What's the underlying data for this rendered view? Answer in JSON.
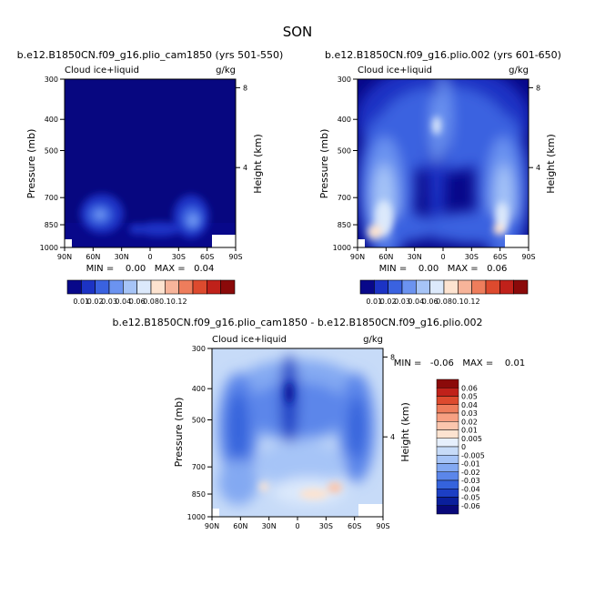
{
  "page_title": "SON",
  "panels": [
    {
      "title": "b.e12.B1850CN.f09_g16.plio_cam1850 (yrs 501-550)",
      "left_label": "Cloud ice+liquid",
      "right_label": "g/kg",
      "ylabel": "Pressure (mb)",
      "y2label": "Height (km)",
      "stats": "MIN =    0.00   MAX =   0.04"
    },
    {
      "title": "b.e12.B1850CN.f09_g16.plio.002 (yrs 601-650)",
      "left_label": "Cloud ice+liquid",
      "right_label": "g/kg",
      "ylabel": "Pressure (mb)",
      "y2label": "Height (km)",
      "stats": "MIN =    0.00   MAX =   0.06"
    },
    {
      "title": "b.e12.B1850CN.f09_g16.plio_cam1850 - b.e12.B1850CN.f09_g16.plio.002",
      "left_label": "Cloud ice+liquid",
      "right_label": "g/kg",
      "ylabel": "Pressure (mb)",
      "y2label": "Height (km)",
      "stats": "MIN =   -0.06   MAX =    0.01"
    }
  ],
  "colorbar_abs": {
    "labels": [
      "0.01",
      "0.02",
      "0.03",
      "0.04",
      "0.06",
      "0.08",
      "0.1",
      "0.12"
    ],
    "colors": [
      "#08088a",
      "#1c33c4",
      "#3a62e0",
      "#6b93f0",
      "#a6c4f7",
      "#dce9fb",
      "#fde3d0",
      "#f7b49a",
      "#ee7d5c",
      "#dd4a2e",
      "#c0211a",
      "#8b0a0a"
    ]
  },
  "colorbar_diff": {
    "labels": [
      "0.06",
      "0.05",
      "0.04",
      "0.03",
      "0.02",
      "0.01",
      "0.005",
      "0",
      "-0.005",
      "-0.01",
      "-0.02",
      "-0.03",
      "-0.04",
      "-0.05",
      "-0.06"
    ],
    "colors": [
      "#8b0a0a",
      "#c0211a",
      "#dd4a2e",
      "#ee7d5c",
      "#f7a082",
      "#fbc6ad",
      "#fde3d0",
      "#e6effc",
      "#c7dbf8",
      "#a6c4f7",
      "#83a9f2",
      "#5b86ea",
      "#3563dc",
      "#1c3fc4",
      "#0a1f9c",
      "#08087a"
    ]
  },
  "chart_data": [
    {
      "type": "heatmap",
      "title": "b.e12.B1850CN.f09_g16.plio_cam1850 (yrs 501-550)",
      "variable": "Cloud ice+liquid",
      "units": "g/kg",
      "xlabel": "",
      "ylabel": "Pressure (mb)",
      "y2label": "Height (km)",
      "x_ticks": [
        "90N",
        "60N",
        "30N",
        "0",
        "30S",
        "60S",
        "90S"
      ],
      "y_ticks": [
        300,
        400,
        500,
        700,
        850,
        1000
      ],
      "y2_ticks": [
        8,
        4
      ],
      "min": 0.0,
      "max": 0.04
    },
    {
      "type": "heatmap",
      "title": "b.e12.B1850CN.f09_g16.plio.002 (yrs 601-650)",
      "variable": "Cloud ice+liquid",
      "units": "g/kg",
      "xlabel": "",
      "ylabel": "Pressure (mb)",
      "y2label": "Height (km)",
      "x_ticks": [
        "90N",
        "60N",
        "30N",
        "0",
        "30S",
        "60S",
        "90S"
      ],
      "y_ticks": [
        300,
        400,
        500,
        700,
        850,
        1000
      ],
      "y2_ticks": [
        8,
        4
      ],
      "min": 0.0,
      "max": 0.06
    },
    {
      "type": "heatmap",
      "title": "b.e12.B1850CN.f09_g16.plio_cam1850 - b.e12.B1850CN.f09_g16.plio.002",
      "variable": "Cloud ice+liquid",
      "units": "g/kg",
      "xlabel": "",
      "ylabel": "Pressure (mb)",
      "y2label": "Height (km)",
      "x_ticks": [
        "90N",
        "60N",
        "30N",
        "0",
        "30S",
        "60S",
        "90S"
      ],
      "y_ticks": [
        300,
        400,
        500,
        700,
        850,
        1000
      ],
      "y2_ticks": [
        8,
        4
      ],
      "min": -0.06,
      "max": 0.01
    }
  ]
}
